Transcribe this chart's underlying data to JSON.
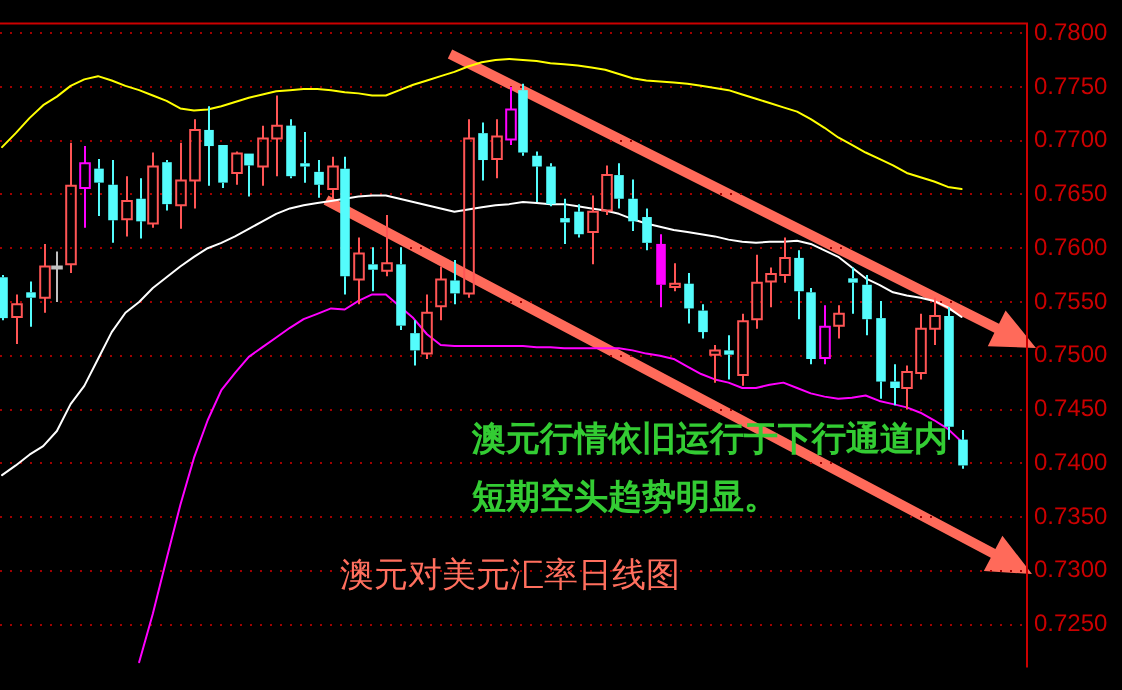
{
  "chart_data": {
    "type": "candlestick",
    "categories": [
      null,
      null,
      null,
      null,
      null,
      null,
      null,
      null,
      null,
      null,
      null,
      null,
      null,
      null,
      null,
      null,
      null,
      null,
      null,
      null,
      null,
      null,
      null,
      null,
      null,
      null,
      null,
      null,
      null,
      null,
      null,
      null,
      null,
      null,
      null,
      null,
      null,
      null,
      null,
      null,
      null,
      null,
      null,
      null,
      null,
      null,
      null,
      null,
      null,
      null,
      null,
      null,
      null,
      null,
      null,
      null,
      null,
      null,
      null,
      null,
      null,
      null,
      null,
      null,
      null,
      null,
      null,
      null,
      null,
      null,
      null
    ],
    "ohlc": [
      [
        0.7573,
        0.7575,
        0.7533,
        0.7535
      ],
      [
        0.7536,
        0.7557,
        0.7511,
        0.7548
      ],
      [
        0.7559,
        0.7569,
        0.7527,
        0.7554
      ],
      [
        0.7554,
        0.7604,
        0.754,
        0.7583
      ],
      [
        0.7583,
        0.7597,
        0.755,
        0.7583
      ],
      [
        0.7585,
        0.7698,
        0.7577,
        0.7658
      ],
      [
        0.7656,
        0.7695,
        0.7619,
        0.7679
      ],
      [
        0.7674,
        0.7683,
        0.763,
        0.7661
      ],
      [
        0.7659,
        0.7682,
        0.7605,
        0.7626
      ],
      [
        0.7627,
        0.7667,
        0.7611,
        0.7644
      ],
      [
        0.7646,
        0.7665,
        0.7609,
        0.7625
      ],
      [
        0.7623,
        0.7689,
        0.7619,
        0.7676
      ],
      [
        0.768,
        0.7682,
        0.7635,
        0.7641
      ],
      [
        0.764,
        0.7698,
        0.7618,
        0.7663
      ],
      [
        0.7663,
        0.772,
        0.7637,
        0.771
      ],
      [
        0.771,
        0.7732,
        0.7658,
        0.7695
      ],
      [
        0.7696,
        0.7696,
        0.7656,
        0.7661
      ],
      [
        0.767,
        0.769,
        0.7659,
        0.7688
      ],
      [
        0.7688,
        0.7688,
        0.7648,
        0.7677
      ],
      [
        0.7676,
        0.7714,
        0.7658,
        0.7702
      ],
      [
        0.7702,
        0.7742,
        0.7667,
        0.7714
      ],
      [
        0.7714,
        0.772,
        0.7665,
        0.7667
      ],
      [
        0.7679,
        0.7708,
        0.7661,
        0.7676
      ],
      [
        0.7671,
        0.7682,
        0.7647,
        0.7659
      ],
      [
        0.7655,
        0.7685,
        0.7646,
        0.7676
      ],
      [
        0.7674,
        0.7685,
        0.7557,
        0.7574
      ],
      [
        0.7571,
        0.761,
        0.7548,
        0.7595
      ],
      [
        0.7585,
        0.7601,
        0.756,
        0.758
      ],
      [
        0.7579,
        0.7631,
        0.7574,
        0.7586
      ],
      [
        0.7585,
        0.7601,
        0.7524,
        0.7528
      ],
      [
        0.7521,
        0.7533,
        0.7491,
        0.7505
      ],
      [
        0.7502,
        0.7557,
        0.7497,
        0.754
      ],
      [
        0.7546,
        0.7583,
        0.7533,
        0.7571
      ],
      [
        0.757,
        0.7589,
        0.7548,
        0.7558
      ],
      [
        0.7558,
        0.772,
        0.7554,
        0.7702
      ],
      [
        0.7707,
        0.7717,
        0.7663,
        0.7682
      ],
      [
        0.7683,
        0.772,
        0.7665,
        0.7704
      ],
      [
        0.7701,
        0.775,
        0.7696,
        0.7729
      ],
      [
        0.7747,
        0.7753,
        0.7686,
        0.7689
      ],
      [
        0.7686,
        0.769,
        0.7643,
        0.7676
      ],
      [
        0.7676,
        0.7679,
        0.7639,
        0.7641
      ],
      [
        0.7628,
        0.7646,
        0.7604,
        0.7624
      ],
      [
        0.7634,
        0.7641,
        0.761,
        0.7613
      ],
      [
        0.7615,
        0.7649,
        0.7585,
        0.7634
      ],
      [
        0.7635,
        0.7677,
        0.7631,
        0.7668
      ],
      [
        0.7668,
        0.7679,
        0.7637,
        0.7646
      ],
      [
        0.7646,
        0.7664,
        0.7616,
        0.7625
      ],
      [
        0.7629,
        0.7637,
        0.7598,
        0.7605
      ],
      [
        0.7604,
        0.7613,
        0.7545,
        0.7566
      ],
      [
        0.7564,
        0.7586,
        0.756,
        0.7567
      ],
      [
        0.7567,
        0.7577,
        0.753,
        0.7544
      ],
      [
        0.7542,
        0.7548,
        0.7516,
        0.7522
      ],
      [
        0.7501,
        0.751,
        0.7475,
        0.7505
      ],
      [
        0.7505,
        0.7519,
        0.7478,
        0.7501
      ],
      [
        0.7482,
        0.7539,
        0.7472,
        0.7532
      ],
      [
        0.7534,
        0.7594,
        0.7525,
        0.7568
      ],
      [
        0.7569,
        0.7582,
        0.7545,
        0.7576
      ],
      [
        0.7575,
        0.761,
        0.7568,
        0.7591
      ],
      [
        0.7591,
        0.7598,
        0.7534,
        0.756
      ],
      [
        0.7559,
        0.7563,
        0.7492,
        0.7497
      ],
      [
        0.7498,
        0.7547,
        0.7492,
        0.7527
      ],
      [
        0.7528,
        0.7547,
        0.7516,
        0.7539
      ],
      [
        0.7572,
        0.7582,
        0.7539,
        0.7568
      ],
      [
        0.7566,
        0.7575,
        0.7519,
        0.7534
      ],
      [
        0.7535,
        0.7551,
        0.746,
        0.7476
      ],
      [
        0.7476,
        0.7492,
        0.7454,
        0.747
      ],
      [
        0.747,
        0.7491,
        0.745,
        0.7485
      ],
      [
        0.7484,
        0.7539,
        0.7478,
        0.7525
      ],
      [
        0.7525,
        0.7554,
        0.751,
        0.7537
      ],
      [
        0.7537,
        0.7545,
        0.7422,
        0.7434
      ],
      [
        0.7422,
        0.7431,
        0.7395,
        0.7398
      ]
    ],
    "colors": [
      "#54fcfc",
      "#ff5555",
      "#54fcfc",
      "#ff5555",
      "#c0c0c0",
      "#ff5555",
      "#ff00ff",
      "#54fcfc",
      "#54fcfc",
      "#ff5555",
      "#54fcfc",
      "#ff5555",
      "#54fcfc",
      "#ff5555",
      "#ff5555",
      "#54fcfc",
      "#54fcfc",
      "#ff5555",
      "#54fcfc",
      "#ff5555",
      "#ff5555",
      "#54fcfc",
      "#54fcfc",
      "#54fcfc",
      "#ff5555",
      "#54fcfc",
      "#ff5555",
      "#54fcfc",
      "#ff5555",
      "#54fcfc",
      "#54fcfc",
      "#ff5555",
      "#ff5555",
      "#54fcfc",
      "#ff5555",
      "#54fcfc",
      "#ff5555",
      "#ff00ff",
      "#54fcfc",
      "#54fcfc",
      "#54fcfc",
      "#54fcfc",
      "#54fcfc",
      "#ff5555",
      "#ff5555",
      "#54fcfc",
      "#54fcfc",
      "#54fcfc",
      "#ff00ff",
      "#ff5555",
      "#54fcfc",
      "#54fcfc",
      "#ff5555",
      "#54fcfc",
      "#ff5555",
      "#ff5555",
      "#ff5555",
      "#ff5555",
      "#54fcfc",
      "#54fcfc",
      "#ff00ff",
      "#ff5555",
      "#54fcfc",
      "#54fcfc",
      "#54fcfc",
      "#54fcfc",
      "#ff5555",
      "#ff5555",
      "#ff5555",
      "#54fcfc",
      "#54fcfc"
    ],
    "series": [
      {
        "type": "line",
        "color": "#ffff00",
        "values": [
          0.7694,
          0.7707,
          0.7721,
          0.7733,
          0.7741,
          0.7751,
          0.7757,
          0.776,
          0.7756,
          0.7751,
          0.7747,
          0.7742,
          0.7737,
          0.773,
          0.7728,
          0.7729,
          0.7732,
          0.7736,
          0.774,
          0.7743,
          0.7746,
          0.7747,
          0.7748,
          0.7748,
          0.7747,
          0.7745,
          0.7744,
          0.7742,
          0.7742,
          0.7747,
          0.7752,
          0.7756,
          0.776,
          0.7764,
          0.7769,
          0.7773,
          0.7775,
          0.7776,
          0.7775,
          0.7774,
          0.7772,
          0.7771,
          0.777,
          0.7768,
          0.7766,
          0.7762,
          0.7758,
          0.7756,
          0.7755,
          0.7754,
          0.7753,
          0.7751,
          0.7749,
          0.7747,
          0.7743,
          0.7739,
          0.7735,
          0.7731,
          0.7727,
          0.772,
          0.7712,
          0.7703,
          0.7696,
          0.7689,
          0.7683,
          0.7677,
          0.767,
          0.7666,
          0.7662,
          0.7657,
          0.7655
        ]
      },
      {
        "type": "line",
        "color": "#ffffff",
        "values": [
          0.7389,
          0.7398,
          0.7408,
          0.7416,
          0.743,
          0.7455,
          0.7472,
          0.7497,
          0.7522,
          0.754,
          0.755,
          0.7563,
          0.7573,
          0.7583,
          0.7592,
          0.76,
          0.7605,
          0.7611,
          0.7618,
          0.7625,
          0.7632,
          0.7637,
          0.764,
          0.7642,
          0.7644,
          0.7646,
          0.7648,
          0.7649,
          0.7649,
          0.7646,
          0.7643,
          0.764,
          0.7637,
          0.7634,
          0.7636,
          0.7638,
          0.764,
          0.7641,
          0.7643,
          0.7642,
          0.7641,
          0.7641,
          0.7639,
          0.7637,
          0.7635,
          0.7632,
          0.7627,
          0.7623,
          0.762,
          0.7617,
          0.7615,
          0.7613,
          0.7611,
          0.7608,
          0.7606,
          0.7605,
          0.7606,
          0.7606,
          0.7607,
          0.7604,
          0.7598,
          0.7592,
          0.7582,
          0.7572,
          0.7566,
          0.7559,
          0.7556,
          0.7554,
          0.7551,
          0.7545,
          0.7536
        ]
      },
      {
        "type": "line",
        "color": "#ff00ff",
        "values": [
          null,
          null,
          null,
          null,
          null,
          null,
          null,
          null,
          null,
          null,
          0.7215,
          0.726,
          0.7311,
          0.7361,
          0.7405,
          0.744,
          0.7468,
          0.7484,
          0.7499,
          0.7508,
          0.7517,
          0.7526,
          0.7534,
          0.7539,
          0.7544,
          0.7543,
          0.7551,
          0.7557,
          0.7557,
          0.7546,
          0.7535,
          0.752,
          0.751,
          0.7509,
          0.7509,
          0.7509,
          0.7509,
          0.7509,
          0.7509,
          0.7508,
          0.7508,
          0.7507,
          0.7507,
          0.7507,
          0.7507,
          0.7507,
          0.7505,
          0.7502,
          0.75,
          0.7497,
          0.749,
          0.7483,
          0.7478,
          0.7475,
          0.747,
          0.747,
          0.7473,
          0.7475,
          0.747,
          0.7465,
          0.7462,
          0.746,
          0.7461,
          0.7463,
          0.7458,
          0.7455,
          0.7452,
          0.7447,
          0.744,
          0.7432,
          0.742
        ]
      }
    ],
    "ylim": [
      0.721,
      0.781
    ],
    "yticks": [
      {
        "value": 0.725,
        "label": "0.7250"
      },
      {
        "value": 0.73,
        "label": "0.7300"
      },
      {
        "value": 0.735,
        "label": "0.7350"
      },
      {
        "value": 0.74,
        "label": "0.7400"
      },
      {
        "value": 0.745,
        "label": "0.7450"
      },
      {
        "value": 0.75,
        "label": "0.7500"
      },
      {
        "value": 0.755,
        "label": "0.7550"
      },
      {
        "value": 0.76,
        "label": "0.7600"
      },
      {
        "value": 0.765,
        "label": "0.7650"
      },
      {
        "value": 0.77,
        "label": "0.7700"
      },
      {
        "value": 0.775,
        "label": "0.7750"
      },
      {
        "value": 0.78,
        "label": "0.7800"
      }
    ],
    "grid": "y",
    "tick_labels": "y",
    "annotations": [
      "澳元行情依旧运行于下行通道内短期空头趋势明显。",
      "澳元对美元汇率日线图"
    ]
  }
}
